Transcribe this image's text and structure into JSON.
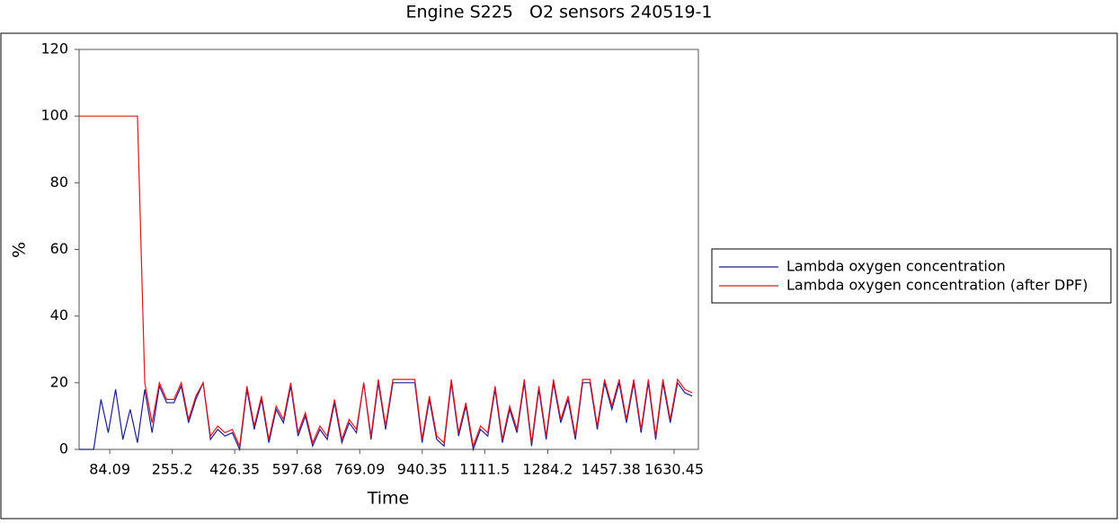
{
  "chart_data": {
    "type": "line",
    "title": "Engine S225   O2 sensors 240519-1",
    "x_label": "Time",
    "y_label": "%",
    "x": [
      0,
      20,
      40,
      60,
      80,
      100,
      120,
      140,
      160,
      180,
      200,
      220,
      240,
      260,
      280,
      300,
      320,
      340,
      360,
      380,
      400,
      420,
      440,
      460,
      480,
      500,
      520,
      540,
      560,
      580,
      600,
      620,
      640,
      660,
      680,
      700,
      720,
      740,
      760,
      780,
      800,
      820,
      840,
      860,
      880,
      900,
      920,
      940,
      960,
      980,
      1000,
      1020,
      1040,
      1060,
      1080,
      1100,
      1120,
      1140,
      1160,
      1180,
      1200,
      1220,
      1240,
      1260,
      1280,
      1300,
      1320,
      1340,
      1360,
      1380,
      1400,
      1420,
      1440,
      1460,
      1480,
      1500,
      1520,
      1540,
      1560,
      1580,
      1600,
      1620,
      1640,
      1660,
      1680
    ],
    "series": [
      {
        "name": "Lambda oxygen concentration",
        "color": "#1a1f8c",
        "values": [
          0,
          0,
          0,
          15,
          5,
          18,
          3,
          12,
          2,
          18,
          5,
          19,
          14,
          14,
          19,
          8,
          15,
          20,
          3,
          6,
          4,
          5,
          0,
          18,
          6,
          15,
          2,
          12,
          8,
          19,
          4,
          10,
          1,
          6,
          3,
          14,
          2,
          8,
          5,
          20,
          3,
          20,
          6,
          20,
          20,
          20,
          20,
          2,
          15,
          3,
          1,
          20,
          4,
          13,
          0,
          6,
          4,
          18,
          2,
          12,
          5,
          20,
          1,
          18,
          3,
          20,
          8,
          15,
          3,
          20,
          20,
          6,
          20,
          12,
          20,
          8,
          20,
          5,
          20,
          3,
          20,
          8,
          20,
          17,
          16
        ]
      },
      {
        "name": "Lambda oxygen concentration (after DPF)",
        "color": "#e0141e",
        "values": [
          100,
          100,
          100,
          100,
          100,
          100,
          100,
          100,
          100,
          20,
          8,
          20,
          15,
          15,
          20,
          9,
          16,
          20,
          4,
          7,
          5,
          6,
          1,
          19,
          7,
          16,
          3,
          13,
          9,
          20,
          5,
          11,
          2,
          7,
          4,
          15,
          3,
          9,
          6,
          20,
          4,
          21,
          7,
          21,
          21,
          21,
          21,
          3,
          16,
          4,
          2,
          21,
          5,
          14,
          1,
          7,
          5,
          19,
          3,
          13,
          6,
          21,
          2,
          19,
          4,
          21,
          9,
          16,
          4,
          21,
          21,
          7,
          21,
          13,
          21,
          9,
          21,
          6,
          21,
          4,
          21,
          9,
          21,
          18,
          17
        ]
      }
    ],
    "xlim": [
      0,
      1697
    ],
    "xticks": [
      84.09,
      255.2,
      426.35,
      597.68,
      769.09,
      940.35,
      1111.5,
      1284.2,
      1457.38,
      1630.45
    ],
    "ylim": [
      0,
      120
    ],
    "yticks": [
      0,
      20,
      40,
      60,
      80,
      100,
      120
    ],
    "legend": "right"
  }
}
